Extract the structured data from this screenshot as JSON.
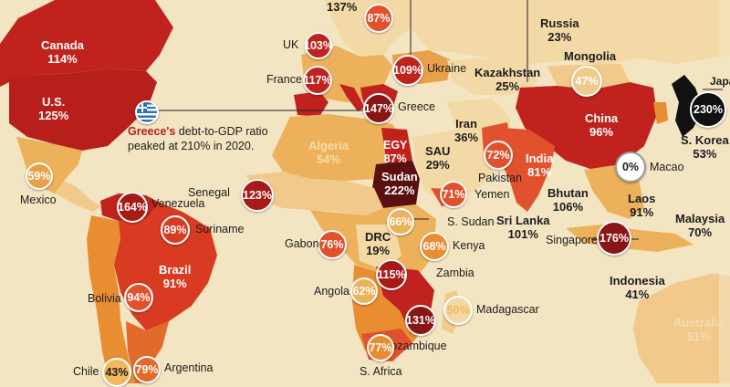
{
  "map": {
    "metric": "debt-to-GDP",
    "colors": {
      "background": "#f3e4c2",
      "level_low": "#f3d9a6",
      "level_mid": "#f1b85c",
      "level_high": "#e2512d",
      "level_very_high": "#c0231d",
      "level_extreme": "#5a1010",
      "ocean_line": "#ffffff"
    }
  },
  "callout": {
    "country": "Greece's",
    "line1_rest": " debt-to-GDP ratio",
    "line2": "peaked at 210% in 2020.",
    "flag_icon": "greece-flag-icon"
  },
  "labels": {
    "canada": {
      "name": "Canada",
      "value": "114%"
    },
    "us": {
      "name": "U.S.",
      "value": "125%"
    },
    "mexico": {
      "name": "Mexico",
      "value": "59%"
    },
    "venezuela": {
      "name": "Venezuela",
      "value": "164%"
    },
    "suriname": {
      "name": "Suriname",
      "value": "89%"
    },
    "brazil": {
      "name": "Brazil",
      "value": "91%"
    },
    "bolivia": {
      "name": "Bolivia",
      "value": "94%"
    },
    "chile": {
      "name": "Chile",
      "value": "43%"
    },
    "argentina": {
      "name": "Argentina",
      "value": "79%"
    },
    "top_partial": {
      "value": "137%"
    },
    "uk": {
      "name": "UK",
      "value": "103%"
    },
    "norway_area": {
      "value": "87%"
    },
    "france": {
      "name": "France",
      "value": "117%"
    },
    "ukraine": {
      "name": "Ukraine",
      "value": "109%"
    },
    "greece": {
      "name": "Greece",
      "value": "147%"
    },
    "algeria": {
      "name": "Algeria",
      "value": "54%"
    },
    "senegal": {
      "name": "Senegal",
      "value": "123%"
    },
    "egypt": {
      "name": "EGY",
      "value": "87%"
    },
    "sudan": {
      "name": "Sudan",
      "value": "222%"
    },
    "saudi": {
      "name": "SAU",
      "value": "29%"
    },
    "iran": {
      "name": "Iran",
      "value": "36%"
    },
    "yemen": {
      "name": "Yemen",
      "value": "71%"
    },
    "south_sudan": {
      "name": "S. Sudan",
      "value": "66%"
    },
    "gabon": {
      "name": "Gabon",
      "value": "76%"
    },
    "drc": {
      "name": "DRC",
      "value": "19%"
    },
    "kenya": {
      "name": "Kenya",
      "value": "68%"
    },
    "zambia": {
      "name": "Zambia",
      "value": "115%"
    },
    "angola": {
      "name": "Angola",
      "value": "62%"
    },
    "madagascar": {
      "name": "Madagascar",
      "value": "50%"
    },
    "mozambique": {
      "name": "Mozambique",
      "value": "131%"
    },
    "south_africa": {
      "name": "S. Africa",
      "value": "77%"
    },
    "russia": {
      "name": "Russia",
      "value": "23%"
    },
    "kazakhstan": {
      "name": "Kazakhstan",
      "value": "25%"
    },
    "mongolia": {
      "name": "Mongolia",
      "value": "47%"
    },
    "china": {
      "name": "China",
      "value": "96%"
    },
    "japan": {
      "name": "Japan",
      "value": "230%"
    },
    "s_korea": {
      "name": "S. Korea",
      "value": "53%"
    },
    "macao": {
      "name": "Macao",
      "value": "0%"
    },
    "pakistan": {
      "name": "Pakistan",
      "value": "72%"
    },
    "india": {
      "name": "India",
      "value": "81%"
    },
    "bhutan": {
      "name": "Bhutan",
      "value": "106%"
    },
    "sri_lanka": {
      "name": "Sri Lanka",
      "value": "101%"
    },
    "laos": {
      "name": "Laos",
      "value": "91%"
    },
    "singapore": {
      "name": "Singapore",
      "value": "176%"
    },
    "malaysia": {
      "name": "Malaysia",
      "value": "70%"
    },
    "indonesia": {
      "name": "Indonesia",
      "value": "41%"
    },
    "australia": {
      "name": "Australia",
      "value": "51%"
    }
  }
}
